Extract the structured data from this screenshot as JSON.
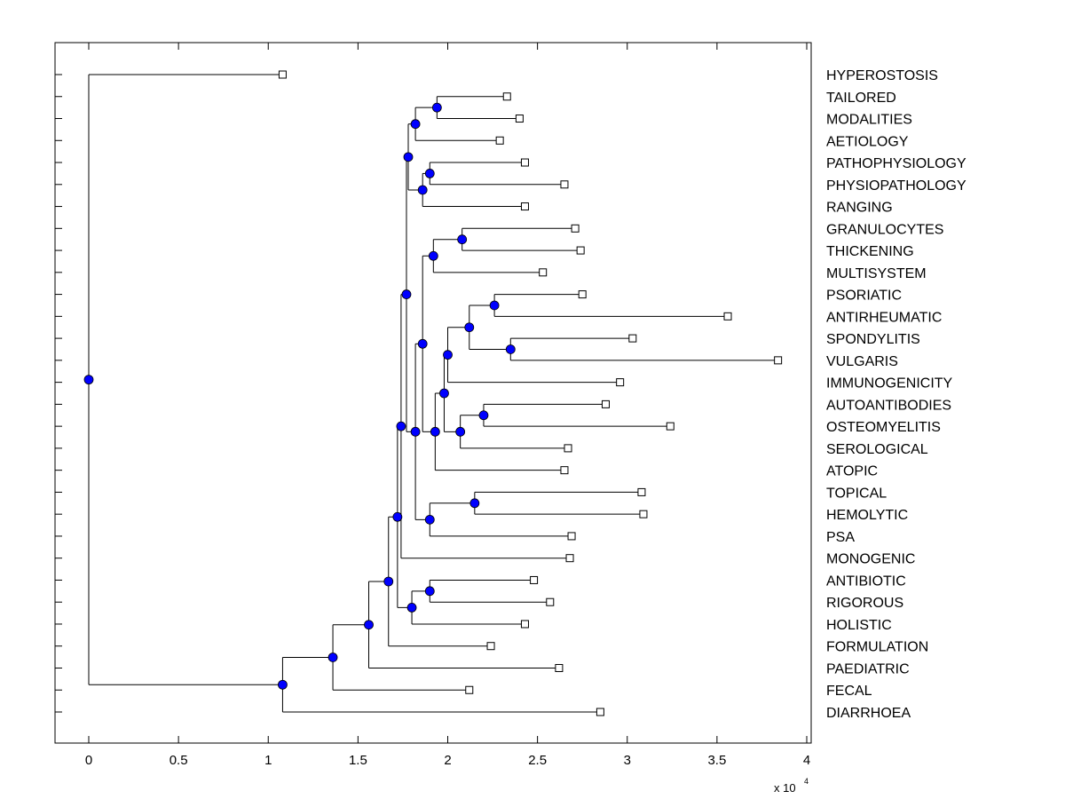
{
  "chart_data": {
    "type": "dendrogram",
    "title": "",
    "xlabel": "",
    "ylabel": "",
    "x_multiplier_label": "x 10",
    "x_multiplier_exponent": "4",
    "xlim": [
      -0.19,
      4.03
    ],
    "xticks": [
      0,
      0.5,
      1,
      1.5,
      2,
      2.5,
      3,
      3.5,
      4
    ],
    "xtick_labels": [
      "0",
      "0.5",
      "1",
      "1.5",
      "2",
      "2.5",
      "3",
      "3.5",
      "4"
    ],
    "grid": false,
    "node_color": "#0000ff",
    "line_color": "#000000",
    "leaves": [
      {
        "name": "HYPEROSTOSIS",
        "value": 1.08
      },
      {
        "name": "TAILORED",
        "value": 2.33
      },
      {
        "name": "MODALITIES",
        "value": 2.4
      },
      {
        "name": "AETIOLOGY",
        "value": 2.29
      },
      {
        "name": "PATHOPHYSIOLOGY",
        "value": 2.43
      },
      {
        "name": "PHYSIOPATHOLOGY",
        "value": 2.65
      },
      {
        "name": "RANGING",
        "value": 2.43
      },
      {
        "name": "GRANULOCYTES",
        "value": 2.71
      },
      {
        "name": "THICKENING",
        "value": 2.74
      },
      {
        "name": "MULTISYSTEM",
        "value": 2.53
      },
      {
        "name": "PSORIATIC",
        "value": 2.75
      },
      {
        "name": "ANTIRHEUMATIC",
        "value": 3.56
      },
      {
        "name": "SPONDYLITIS",
        "value": 3.03
      },
      {
        "name": "VULGARIS",
        "value": 3.84
      },
      {
        "name": "IMMUNOGENICITY",
        "value": 2.96
      },
      {
        "name": "AUTOANTIBODIES",
        "value": 2.88
      },
      {
        "name": "OSTEOMYELITIS",
        "value": 3.24
      },
      {
        "name": "SEROLOGICAL",
        "value": 2.67
      },
      {
        "name": "ATOPIC",
        "value": 2.65
      },
      {
        "name": "TOPICAL",
        "value": 3.08
      },
      {
        "name": "HEMOLYTIC",
        "value": 3.09
      },
      {
        "name": "PSA",
        "value": 2.69
      },
      {
        "name": "MONOGENIC",
        "value": 2.68
      },
      {
        "name": "ANTIBIOTIC",
        "value": 2.48
      },
      {
        "name": "RIGOROUS",
        "value": 2.57
      },
      {
        "name": "HOLISTIC",
        "value": 2.43
      },
      {
        "name": "FORMULATION",
        "value": 2.24
      },
      {
        "name": "PAEDIATRIC",
        "value": 2.62
      },
      {
        "name": "FECAL",
        "value": 2.12
      },
      {
        "name": "DIARRHOEA",
        "value": 2.85
      }
    ],
    "nodes": [
      {
        "id": "n1",
        "value": 1.94,
        "children": [
          "L1",
          "L2"
        ]
      },
      {
        "id": "n2",
        "value": 1.82,
        "children": [
          "n1",
          "L3"
        ]
      },
      {
        "id": "n3",
        "value": 1.9,
        "children": [
          "L4",
          "L5"
        ]
      },
      {
        "id": "n4",
        "value": 1.86,
        "children": [
          "n3",
          "L6"
        ]
      },
      {
        "id": "n5",
        "value": 1.78,
        "children": [
          "n2",
          "n4"
        ]
      },
      {
        "id": "n6",
        "value": 2.08,
        "children": [
          "L7",
          "L8"
        ]
      },
      {
        "id": "n7",
        "value": 1.92,
        "children": [
          "n6",
          "L9"
        ]
      },
      {
        "id": "n8",
        "value": 2.26,
        "children": [
          "L10",
          "L11"
        ]
      },
      {
        "id": "n9",
        "value": 2.35,
        "children": [
          "L12",
          "L13"
        ]
      },
      {
        "id": "n10",
        "value": 2.12,
        "children": [
          "n8",
          "n9"
        ]
      },
      {
        "id": "n11",
        "value": 2.0,
        "children": [
          "n10",
          "L14"
        ]
      },
      {
        "id": "n12",
        "value": 2.2,
        "children": [
          "L15",
          "L16"
        ]
      },
      {
        "id": "n13",
        "value": 2.07,
        "children": [
          "n12",
          "L17"
        ]
      },
      {
        "id": "n14",
        "value": 1.98,
        "children": [
          "n11",
          "n13"
        ]
      },
      {
        "id": "n15",
        "value": 1.93,
        "children": [
          "n14",
          "L18"
        ]
      },
      {
        "id": "n16",
        "value": 1.86,
        "children": [
          "n7",
          "n15"
        ]
      },
      {
        "id": "n17",
        "value": 2.15,
        "children": [
          "L19",
          "L20"
        ]
      },
      {
        "id": "n18",
        "value": 1.9,
        "children": [
          "n17",
          "L21"
        ]
      },
      {
        "id": "n19",
        "value": 1.82,
        "children": [
          "n16",
          "n18"
        ]
      },
      {
        "id": "n20",
        "value": 1.77,
        "children": [
          "n5",
          "n19"
        ]
      },
      {
        "id": "n21",
        "value": 1.74,
        "children": [
          "n20",
          "L22"
        ]
      },
      {
        "id": "n22",
        "value": 1.9,
        "children": [
          "L23",
          "L24"
        ]
      },
      {
        "id": "n23",
        "value": 1.8,
        "children": [
          "n22",
          "L25"
        ]
      },
      {
        "id": "n24",
        "value": 1.72,
        "children": [
          "n21",
          "n23"
        ]
      },
      {
        "id": "n25",
        "value": 1.67,
        "children": [
          "n24",
          "L26"
        ]
      },
      {
        "id": "n26",
        "value": 1.56,
        "children": [
          "n25",
          "L27"
        ]
      },
      {
        "id": "n27",
        "value": 1.36,
        "children": [
          "n26",
          "L28"
        ]
      },
      {
        "id": "n28",
        "value": 1.08,
        "children": [
          "n27",
          "L29"
        ]
      },
      {
        "id": "root",
        "value": 0.0,
        "children": [
          "L0",
          "n28"
        ]
      }
    ]
  }
}
